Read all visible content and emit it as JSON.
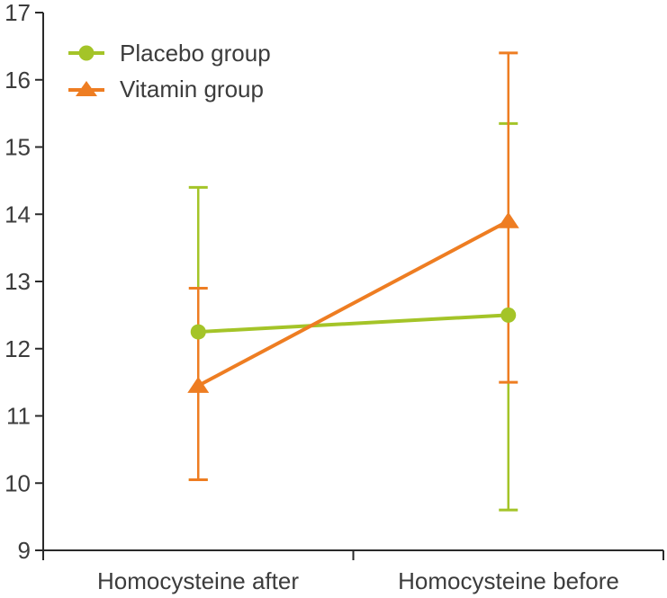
{
  "chart_data": {
    "type": "line",
    "categories": [
      "Homocysteine after",
      "Homocysteine before"
    ],
    "ylim": [
      9,
      17
    ],
    "yticks": [
      9,
      10,
      11,
      12,
      13,
      14,
      15,
      16,
      17
    ],
    "grid": false,
    "legend_position": "top-left",
    "error_bars": true,
    "axis_color": "#2a2a2a",
    "text_color": "#3c3c3c",
    "background_color": "#ffffff",
    "series": [
      {
        "name": "Placebo group",
        "marker": "circle",
        "color": "#a4c428",
        "values": [
          12.25,
          12.5
        ],
        "error_low": [
          10.05,
          9.6
        ],
        "error_high": [
          14.4,
          15.35
        ]
      },
      {
        "name": "Vitamin group",
        "marker": "triangle",
        "color": "#ee7d22",
        "values": [
          11.45,
          13.9
        ],
        "error_low": [
          10.05,
          11.5
        ],
        "error_high": [
          12.9,
          16.4
        ]
      }
    ]
  }
}
